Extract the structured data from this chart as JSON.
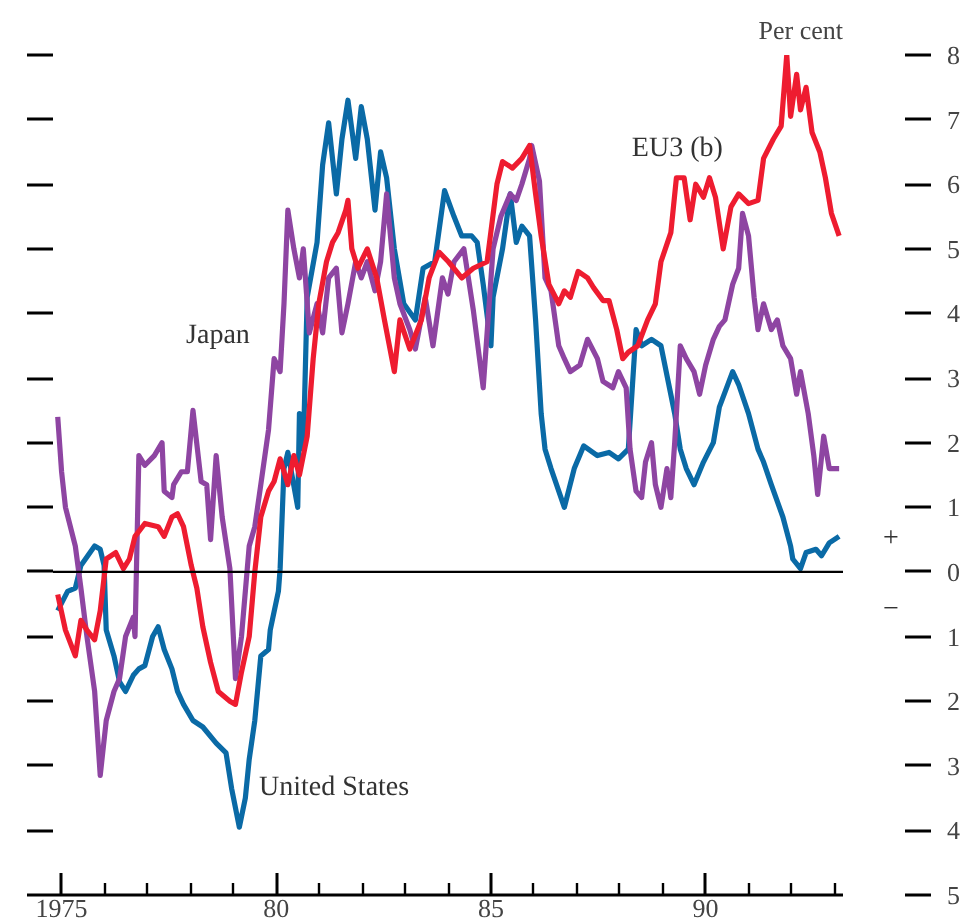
{
  "chart_data": {
    "type": "line",
    "ylabel": "Per cent",
    "xlim": [
      1974.8,
      1993.2
    ],
    "ylim": [
      -5,
      8
    ],
    "xticks": [
      {
        "value": 1975,
        "label": "1975"
      },
      {
        "value": 1976,
        "label": null
      },
      {
        "value": 1977,
        "label": null
      },
      {
        "value": 1978,
        "label": null
      },
      {
        "value": 1979,
        "label": null
      },
      {
        "value": 1980,
        "label": "80"
      },
      {
        "value": 1981,
        "label": null
      },
      {
        "value": 1982,
        "label": null
      },
      {
        "value": 1983,
        "label": null
      },
      {
        "value": 1984,
        "label": null
      },
      {
        "value": 1985,
        "label": "85"
      },
      {
        "value": 1986,
        "label": null
      },
      {
        "value": 1987,
        "label": null
      },
      {
        "value": 1988,
        "label": null
      },
      {
        "value": 1989,
        "label": null
      },
      {
        "value": 1990,
        "label": "90"
      },
      {
        "value": 1991,
        "label": null
      },
      {
        "value": 1992,
        "label": null
      },
      {
        "value": 1993,
        "label": null
      }
    ],
    "yticks": [
      {
        "value": -5,
        "label": "5"
      },
      {
        "value": -4,
        "label": "4"
      },
      {
        "value": -3,
        "label": "3"
      },
      {
        "value": -2,
        "label": "2"
      },
      {
        "value": -1,
        "label": "1"
      },
      0,
      1,
      2,
      3,
      4,
      5,
      6,
      7,
      8
    ],
    "grid": false,
    "marker": "none",
    "line_style": "solid",
    "annotations": [
      "+",
      "−"
    ],
    "ref_lines": [
      {
        "axis": "y",
        "value": 0,
        "color": "#000000"
      }
    ],
    "series": [
      {
        "name": "United States",
        "color": "#0a6aa6",
        "x": [
          1974.91,
          1975.14,
          1975.32,
          1975.45,
          1975.77,
          1975.9,
          1975.99,
          1976.04,
          1976.22,
          1976.35,
          1976.49,
          1976.67,
          1976.8,
          1976.94,
          1977.12,
          1977.25,
          1977.39,
          1977.57,
          1977.7,
          1977.84,
          1978.06,
          1978.29,
          1978.6,
          1978.83,
          1978.96,
          1979.14,
          1979.28,
          1979.37,
          1979.5,
          1979.64,
          1979.82,
          1979.86,
          1980.05,
          1980.09,
          1980.18,
          1980.27,
          1980.5,
          1980.54,
          1980.63,
          1980.72,
          1980.95,
          1981.08,
          1981.22,
          1981.4,
          1981.53,
          1981.67,
          1981.85,
          1981.98,
          1982.12,
          1982.3,
          1982.43,
          1982.57,
          1982.75,
          1982.97,
          1983.24,
          1983.42,
          1983.69,
          1983.92,
          1984.14,
          1984.32,
          1984.55,
          1984.68,
          1984.82,
          1985.0,
          1985.05,
          1985.27,
          1985.45,
          1985.59,
          1985.72,
          1985.9,
          1986.04,
          1986.17,
          1986.26,
          1986.4,
          1986.71,
          1986.94,
          1987.16,
          1987.48,
          1987.75,
          1987.97,
          1988.2,
          1988.38,
          1988.51,
          1988.74,
          1988.96,
          1989.28,
          1989.41,
          1989.55,
          1989.73,
          1989.95,
          1990.18,
          1990.32,
          1990.63,
          1990.77,
          1991.0,
          1991.22,
          1991.35,
          1991.53,
          1991.8,
          1991.98,
          1992.03,
          1992.21,
          1992.34,
          1992.57,
          1992.7,
          1992.88,
          1993.11
        ],
        "values": [
          -0.6,
          -0.3,
          -0.25,
          0.1,
          0.4,
          0.35,
          0.1,
          -0.9,
          -1.3,
          -1.7,
          -1.85,
          -1.6,
          -1.5,
          -1.45,
          -1.0,
          -0.85,
          -1.2,
          -1.5,
          -1.85,
          -2.05,
          -2.3,
          -2.4,
          -2.65,
          -2.8,
          -3.35,
          -3.95,
          -3.5,
          -2.9,
          -2.3,
          -1.3,
          -1.2,
          -0.9,
          -0.3,
          0.05,
          1.6,
          1.85,
          1.0,
          2.45,
          1.9,
          4.25,
          5.1,
          6.3,
          6.95,
          5.85,
          6.7,
          7.3,
          6.4,
          7.2,
          6.7,
          5.6,
          6.5,
          6.1,
          5.0,
          4.15,
          3.9,
          4.7,
          4.8,
          5.9,
          5.5,
          5.2,
          5.2,
          5.1,
          4.45,
          3.5,
          4.25,
          5.0,
          5.85,
          5.1,
          5.35,
          5.2,
          3.9,
          2.45,
          1.9,
          1.6,
          1.0,
          1.6,
          1.95,
          1.8,
          1.85,
          1.75,
          1.9,
          3.75,
          3.5,
          3.6,
          3.5,
          2.45,
          1.9,
          1.6,
          1.35,
          1.7,
          2.0,
          2.55,
          3.1,
          2.9,
          2.45,
          1.9,
          1.7,
          1.35,
          0.85,
          0.4,
          0.2,
          0.05,
          0.3,
          0.35,
          0.25,
          0.45,
          0.55
        ]
      },
      {
        "name": "Japan",
        "color": "#8e45a2",
        "x": [
          1974.91,
          1975.0,
          1975.09,
          1975.32,
          1975.45,
          1975.59,
          1975.77,
          1975.9,
          1976.04,
          1976.22,
          1976.35,
          1976.49,
          1976.67,
          1976.71,
          1976.8,
          1976.94,
          1977.16,
          1977.34,
          1977.39,
          1977.57,
          1977.61,
          1977.79,
          1977.93,
          1978.06,
          1978.25,
          1978.38,
          1978.47,
          1978.6,
          1978.74,
          1978.92,
          1979.05,
          1979.19,
          1979.37,
          1979.5,
          1979.64,
          1979.82,
          1979.95,
          1980.09,
          1980.18,
          1980.27,
          1980.41,
          1980.54,
          1980.63,
          1980.77,
          1980.95,
          1981.08,
          1981.22,
          1981.4,
          1981.53,
          1981.67,
          1981.85,
          1981.98,
          1982.12,
          1982.3,
          1982.43,
          1982.57,
          1982.75,
          1982.88,
          1983.11,
          1983.24,
          1983.47,
          1983.65,
          1983.87,
          1984.0,
          1984.14,
          1984.37,
          1984.59,
          1984.82,
          1985.05,
          1985.23,
          1985.45,
          1985.59,
          1985.72,
          1985.9,
          1985.95,
          1986.13,
          1986.26,
          1986.4,
          1986.58,
          1986.71,
          1986.85,
          1987.07,
          1987.25,
          1987.48,
          1987.61,
          1987.84,
          1987.97,
          1988.15,
          1988.24,
          1988.38,
          1988.51,
          1988.6,
          1988.74,
          1988.83,
          1988.96,
          1989.1,
          1989.19,
          1989.28,
          1989.32,
          1989.41,
          1989.55,
          1989.73,
          1989.86,
          1990.0,
          1990.18,
          1990.32,
          1990.45,
          1990.63,
          1990.77,
          1990.86,
          1991.0,
          1991.13,
          1991.22,
          1991.35,
          1991.53,
          1991.67,
          1991.8,
          1991.98,
          1992.12,
          1992.21,
          1992.39,
          1992.52,
          1992.61,
          1992.75,
          1992.88,
          1993.11
        ],
        "values": [
          2.4,
          1.55,
          1.0,
          0.4,
          -0.25,
          -1.0,
          -1.85,
          -3.15,
          -2.3,
          -1.85,
          -1.65,
          -1.0,
          -0.7,
          -1.0,
          1.8,
          1.65,
          1.8,
          2.0,
          1.25,
          1.15,
          1.35,
          1.55,
          1.55,
          2.5,
          1.4,
          1.35,
          0.5,
          1.8,
          0.85,
          0.05,
          -1.65,
          -1.0,
          0.4,
          0.7,
          1.35,
          2.2,
          3.3,
          3.1,
          4.15,
          5.6,
          5.0,
          4.55,
          5.0,
          3.7,
          4.15,
          3.7,
          4.55,
          4.7,
          3.7,
          4.15,
          4.8,
          4.55,
          4.8,
          4.35,
          4.8,
          5.85,
          4.55,
          4.15,
          3.75,
          3.45,
          4.25,
          3.5,
          4.55,
          4.3,
          4.8,
          5.0,
          4.05,
          2.85,
          5.0,
          5.5,
          5.85,
          5.75,
          6.0,
          6.4,
          6.6,
          6.05,
          4.55,
          4.35,
          3.5,
          3.3,
          3.1,
          3.2,
          3.6,
          3.3,
          2.95,
          2.85,
          3.1,
          2.85,
          1.9,
          1.25,
          1.15,
          1.7,
          2.0,
          1.35,
          1.0,
          1.6,
          1.15,
          2.0,
          2.45,
          3.5,
          3.3,
          3.1,
          2.75,
          3.2,
          3.6,
          3.8,
          3.9,
          4.45,
          4.7,
          5.55,
          5.2,
          4.25,
          3.75,
          4.15,
          3.75,
          3.9,
          3.5,
          3.3,
          2.75,
          3.1,
          2.45,
          1.8,
          1.2,
          2.1,
          1.6,
          1.6
        ]
      },
      {
        "name": "EU3 (b)",
        "color": "#ee1c30",
        "x": [
          1974.91,
          1975.09,
          1975.32,
          1975.45,
          1975.59,
          1975.77,
          1975.9,
          1976.04,
          1976.26,
          1976.44,
          1976.58,
          1976.71,
          1976.94,
          1977.25,
          1977.39,
          1977.57,
          1977.7,
          1977.84,
          1978.02,
          1978.15,
          1978.29,
          1978.47,
          1978.65,
          1978.92,
          1979.05,
          1979.19,
          1979.37,
          1979.5,
          1979.64,
          1979.82,
          1979.95,
          1980.09,
          1980.27,
          1980.41,
          1980.54,
          1980.72,
          1980.86,
          1980.99,
          1981.17,
          1981.31,
          1981.44,
          1981.62,
          1981.67,
          1981.76,
          1981.9,
          1982.12,
          1982.34,
          1982.52,
          1982.75,
          1982.88,
          1983.11,
          1983.38,
          1983.56,
          1983.79,
          1984.01,
          1984.32,
          1984.59,
          1984.91,
          1985.14,
          1985.27,
          1985.5,
          1985.72,
          1985.9,
          1986.04,
          1986.17,
          1986.35,
          1986.58,
          1986.71,
          1986.85,
          1987.03,
          1987.25,
          1987.39,
          1987.61,
          1987.75,
          1987.93,
          1988.07,
          1988.2,
          1988.42,
          1988.65,
          1988.83,
          1988.96,
          1989.19,
          1989.32,
          1989.5,
          1989.64,
          1989.77,
          1989.95,
          1990.09,
          1990.23,
          1990.41,
          1990.59,
          1990.77,
          1991.0,
          1991.22,
          1991.35,
          1991.58,
          1991.76,
          1991.89,
          1991.98,
          1992.12,
          1992.21,
          1992.34,
          1992.48,
          1992.66,
          1992.79,
          1992.93,
          1993.11
        ],
        "values": [
          -0.35,
          -0.9,
          -1.3,
          -0.75,
          -0.9,
          -1.05,
          -0.6,
          0.2,
          0.3,
          0.05,
          0.2,
          0.55,
          0.75,
          0.7,
          0.55,
          0.85,
          0.9,
          0.7,
          0.1,
          -0.25,
          -0.85,
          -1.4,
          -1.85,
          -2.0,
          -2.05,
          -1.55,
          -1.0,
          0.0,
          0.85,
          1.25,
          1.4,
          1.75,
          1.35,
          1.8,
          1.5,
          2.1,
          3.3,
          4.15,
          4.8,
          5.1,
          5.25,
          5.6,
          5.75,
          5.0,
          4.7,
          5.0,
          4.55,
          3.9,
          3.1,
          3.9,
          3.45,
          3.9,
          4.55,
          4.95,
          4.8,
          4.55,
          4.7,
          4.8,
          6.0,
          6.35,
          6.25,
          6.4,
          6.6,
          5.85,
          5.2,
          4.45,
          4.15,
          4.35,
          4.25,
          4.65,
          4.55,
          4.4,
          4.2,
          4.2,
          3.75,
          3.3,
          3.4,
          3.5,
          3.9,
          4.15,
          4.8,
          5.25,
          6.1,
          6.1,
          5.45,
          6.0,
          5.8,
          6.1,
          5.8,
          5.0,
          5.65,
          5.85,
          5.7,
          5.75,
          6.4,
          6.7,
          6.9,
          8.0,
          7.05,
          7.7,
          7.15,
          7.5,
          6.8,
          6.5,
          6.1,
          5.55,
          5.2
        ]
      }
    ]
  }
}
